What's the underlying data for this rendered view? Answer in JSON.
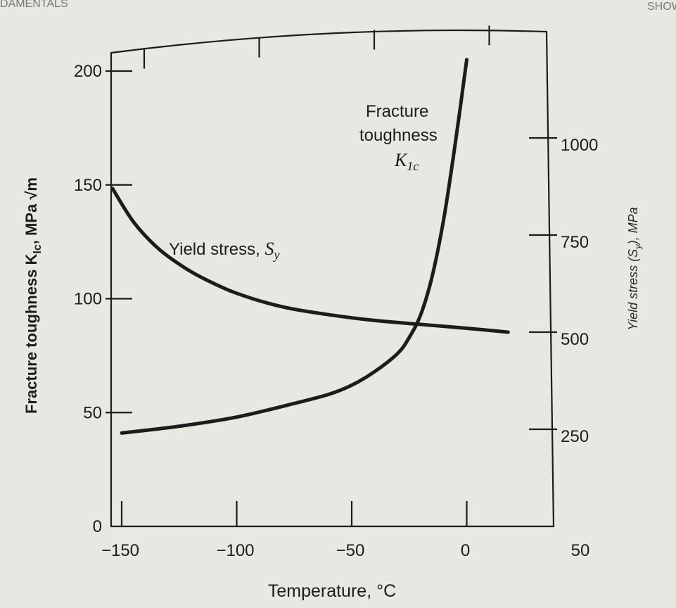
{
  "header_fragments": {
    "left": "DAMENTALS",
    "right": "SHOW"
  },
  "chart_data": {
    "type": "line",
    "x_axis": {
      "label": "Temperature, °C",
      "range": [
        -155,
        50
      ],
      "ticks": [
        -150,
        -100,
        -50,
        0,
        50
      ]
    },
    "y_axis_left": {
      "label": "Fracture toughness K",
      "label_sub": "Ic",
      "label_units": ", MPa √m",
      "range": [
        0,
        215
      ],
      "ticks": [
        0,
        50,
        100,
        150,
        200
      ]
    },
    "y_axis_right": {
      "label": "Yield stress (S",
      "label_sub": "y",
      "label_units": "), MPa",
      "range": [
        0,
        1225
      ],
      "ticks": [
        250,
        500,
        750,
        1000
      ]
    },
    "series": [
      {
        "name": "Fracture toughness K1c",
        "axis": "left",
        "x": [
          -150,
          -125,
          -100,
          -75,
          -60,
          -50,
          -40,
          -30,
          -25,
          -20,
          -15,
          -10,
          -5,
          0
        ],
        "y": [
          41,
          44,
          48,
          54,
          58,
          62,
          68,
          76,
          83,
          93,
          110,
          135,
          168,
          205
        ]
      },
      {
        "name": "Yield stress, Sy",
        "axis": "right",
        "x": [
          -154,
          -145,
          -135,
          -125,
          -115,
          -100,
          -80,
          -60,
          -40,
          -20,
          0,
          18
        ],
        "y": [
          870,
          785,
          720,
          675,
          640,
          600,
          565,
          545,
          530,
          520,
          510,
          500
        ]
      }
    ],
    "annotations": {
      "k1c_line1": "Fracture",
      "k1c_line2": "toughness",
      "k1c_symbol": "K",
      "k1c_symbol_sub": "1c",
      "sy_label": "Yield stress, ",
      "sy_symbol": "S",
      "sy_symbol_sub": "y"
    },
    "grid": false,
    "legend": "none"
  }
}
